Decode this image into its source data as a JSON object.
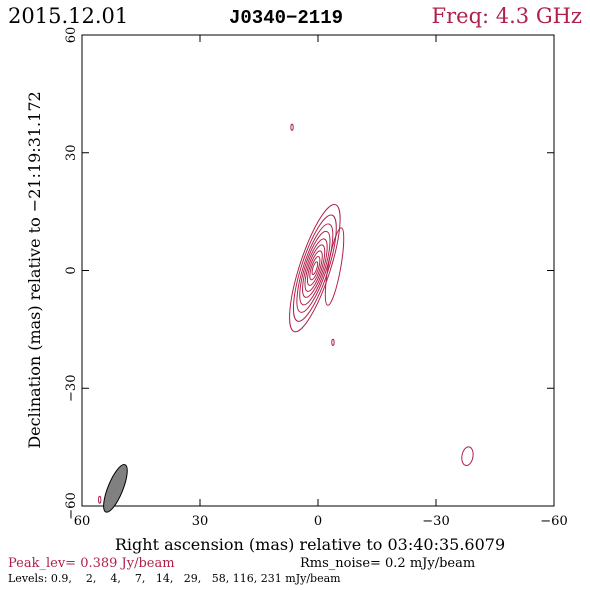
{
  "header": {
    "date": "2015.12.01",
    "source": "J0340−2119",
    "freq": "Freq: 4.3 GHz"
  },
  "footer": {
    "peak": "Peak_lev=  0.389 Jy/beam",
    "rms": "Rms_noise=  0.2 mJy/beam",
    "levels": "Levels: 0.9,    2,    4,    7,   14,   29,   58, 116, 231 mJy/beam"
  },
  "colors": {
    "contour": "#b0204a",
    "axis": "#000000",
    "beam_fill": "#808080",
    "freq_text": "#b0204a",
    "peak_text": "#b0204a"
  },
  "chart_data": {
    "type": "contour",
    "title": "J0340−2119",
    "xlabel": "Right ascension (mas) relative to 03:40:35.6079",
    "ylabel": "Declination (mas) relative to −21:19:31.172",
    "xlim": [
      60,
      -60
    ],
    "ylim": [
      -60,
      60
    ],
    "xticks": [
      60,
      30,
      0,
      -30,
      -60
    ],
    "yticks": [
      -60,
      -30,
      0,
      30,
      60
    ],
    "xtick_labels": [
      "60",
      "30",
      "0",
      "−30",
      "−60"
    ],
    "ytick_labels": [
      "−60",
      "−30",
      "0",
      "30",
      "60"
    ],
    "peak_jy_per_beam": 0.389,
    "rms_noise_mjy_per_beam": 0.2,
    "levels_mjy_per_beam": [
      0.9,
      2,
      4,
      7,
      14,
      29,
      58,
      116,
      231
    ],
    "main_component": {
      "center": [
        0.8,
        0.6
      ],
      "pa_deg": 18,
      "contours": [
        {
          "a": 3.9,
          "b": 17.0
        },
        {
          "a": 3.4,
          "b": 14.2
        },
        {
          "a": 2.9,
          "b": 11.8
        },
        {
          "a": 2.5,
          "b": 9.8
        },
        {
          "a": 2.1,
          "b": 7.8
        },
        {
          "a": 1.7,
          "b": 6.2
        },
        {
          "a": 1.3,
          "b": 4.6
        },
        {
          "a": 0.9,
          "b": 3.1
        },
        {
          "a": 0.5,
          "b": 1.7
        }
      ]
    },
    "extension": {
      "center": [
        -4.2,
        1.0
      ],
      "a": 1.6,
      "b": 10.0,
      "pa_deg": 10
    },
    "minor_components": [
      {
        "center": [
          6.6,
          36.5
        ],
        "a": 0.3,
        "b": 0.8,
        "pa_deg": 0
      },
      {
        "center": [
          -3.8,
          -18.3
        ],
        "a": 0.3,
        "b": 0.8,
        "pa_deg": 0
      },
      {
        "center": [
          -38.0,
          -47.3
        ],
        "a": 1.4,
        "b": 2.4,
        "pa_deg": 10
      },
      {
        "center": [
          55.5,
          -58.4
        ],
        "a": 0.3,
        "b": 0.9,
        "pa_deg": 0
      }
    ],
    "beam": {
      "center": [
        51.5,
        -55.5
      ],
      "a": 1.9,
      "b": 6.5,
      "pa_deg": 22
    }
  }
}
